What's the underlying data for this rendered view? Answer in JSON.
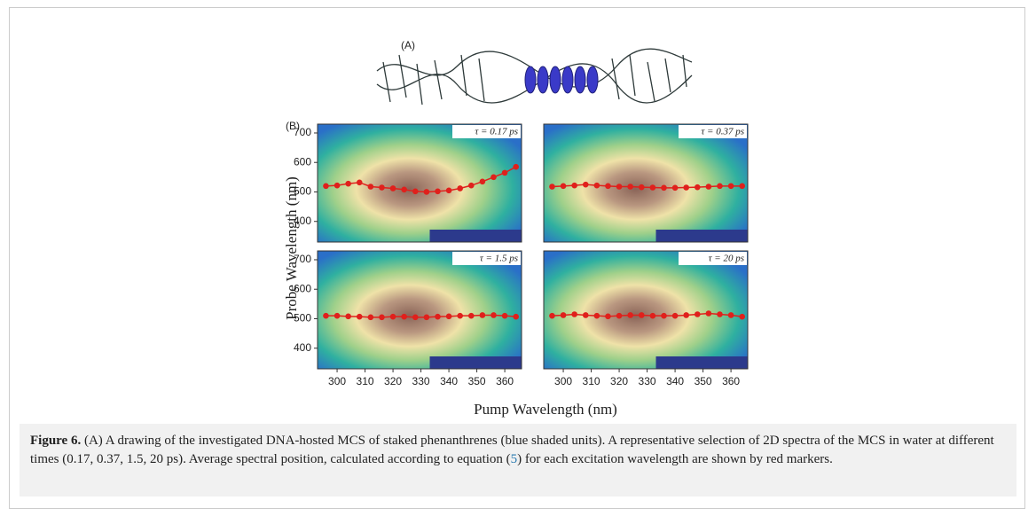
{
  "figure": {
    "panel_a_label": "(A)",
    "panel_b_label": "(B)",
    "y_label": "Probe Wavelength (nm)",
    "x_label": "Pump Wavelength (nm)",
    "caption": {
      "label": "Figure 6.",
      "text_before": " (A) A drawing of the investigated DNA-hosted MCS of staked phenanthrenes (blue shaded units). A representative selection of 2D spectra of the MCS in water at different times (0.17, 0.37, 1.5, 20 ps). Average spectral position, calculated according to equation (",
      "ref": "5",
      "text_after": ") for each excitation wavelength are shown by red markers."
    }
  },
  "chart_data": [
    {
      "type": "line",
      "annotation": "τ = 0.17 ps",
      "color": "#e0201c",
      "x": [
        296,
        300,
        304,
        308,
        312,
        316,
        320,
        324,
        328,
        332,
        336,
        340,
        344,
        348,
        352,
        356,
        360,
        364
      ],
      "values": [
        520,
        522,
        528,
        532,
        518,
        515,
        512,
        508,
        502,
        500,
        502,
        505,
        512,
        522,
        535,
        550,
        565,
        585
      ],
      "xlim": [
        293,
        366
      ],
      "ylim": [
        330,
        730
      ],
      "yticks": [
        400,
        500,
        600,
        700
      ]
    },
    {
      "type": "line",
      "annotation": "τ = 0.37 ps",
      "color": "#e0201c",
      "x": [
        296,
        300,
        304,
        308,
        312,
        316,
        320,
        324,
        328,
        332,
        336,
        340,
        344,
        348,
        352,
        356,
        360,
        364
      ],
      "values": [
        518,
        520,
        522,
        525,
        522,
        520,
        518,
        518,
        516,
        515,
        514,
        514,
        515,
        516,
        518,
        520,
        520,
        520
      ],
      "xlim": [
        293,
        366
      ],
      "ylim": [
        330,
        730
      ]
    },
    {
      "type": "line",
      "annotation": "τ = 1.5 ps",
      "color": "#e0201c",
      "x": [
        296,
        300,
        304,
        308,
        312,
        316,
        320,
        324,
        328,
        332,
        336,
        340,
        344,
        348,
        352,
        356,
        360,
        364
      ],
      "values": [
        510,
        510,
        508,
        507,
        505,
        505,
        507,
        507,
        505,
        505,
        507,
        508,
        510,
        510,
        512,
        512,
        510,
        507
      ],
      "xlim": [
        293,
        366
      ],
      "ylim": [
        330,
        730
      ],
      "xticks": [
        300,
        310,
        320,
        330,
        340,
        350,
        360
      ],
      "yticks": [
        400,
        500,
        600,
        700
      ]
    },
    {
      "type": "line",
      "annotation": "τ = 20 ps",
      "color": "#e0201c",
      "x": [
        296,
        300,
        304,
        308,
        312,
        316,
        320,
        324,
        328,
        332,
        336,
        340,
        344,
        348,
        352,
        356,
        360,
        364
      ],
      "values": [
        510,
        512,
        515,
        512,
        510,
        508,
        510,
        512,
        512,
        510,
        510,
        510,
        512,
        515,
        518,
        515,
        512,
        507
      ],
      "xlim": [
        293,
        366
      ],
      "ylim": [
        330,
        730
      ],
      "xticks": [
        300,
        310,
        320,
        330,
        340,
        350,
        360
      ]
    }
  ]
}
